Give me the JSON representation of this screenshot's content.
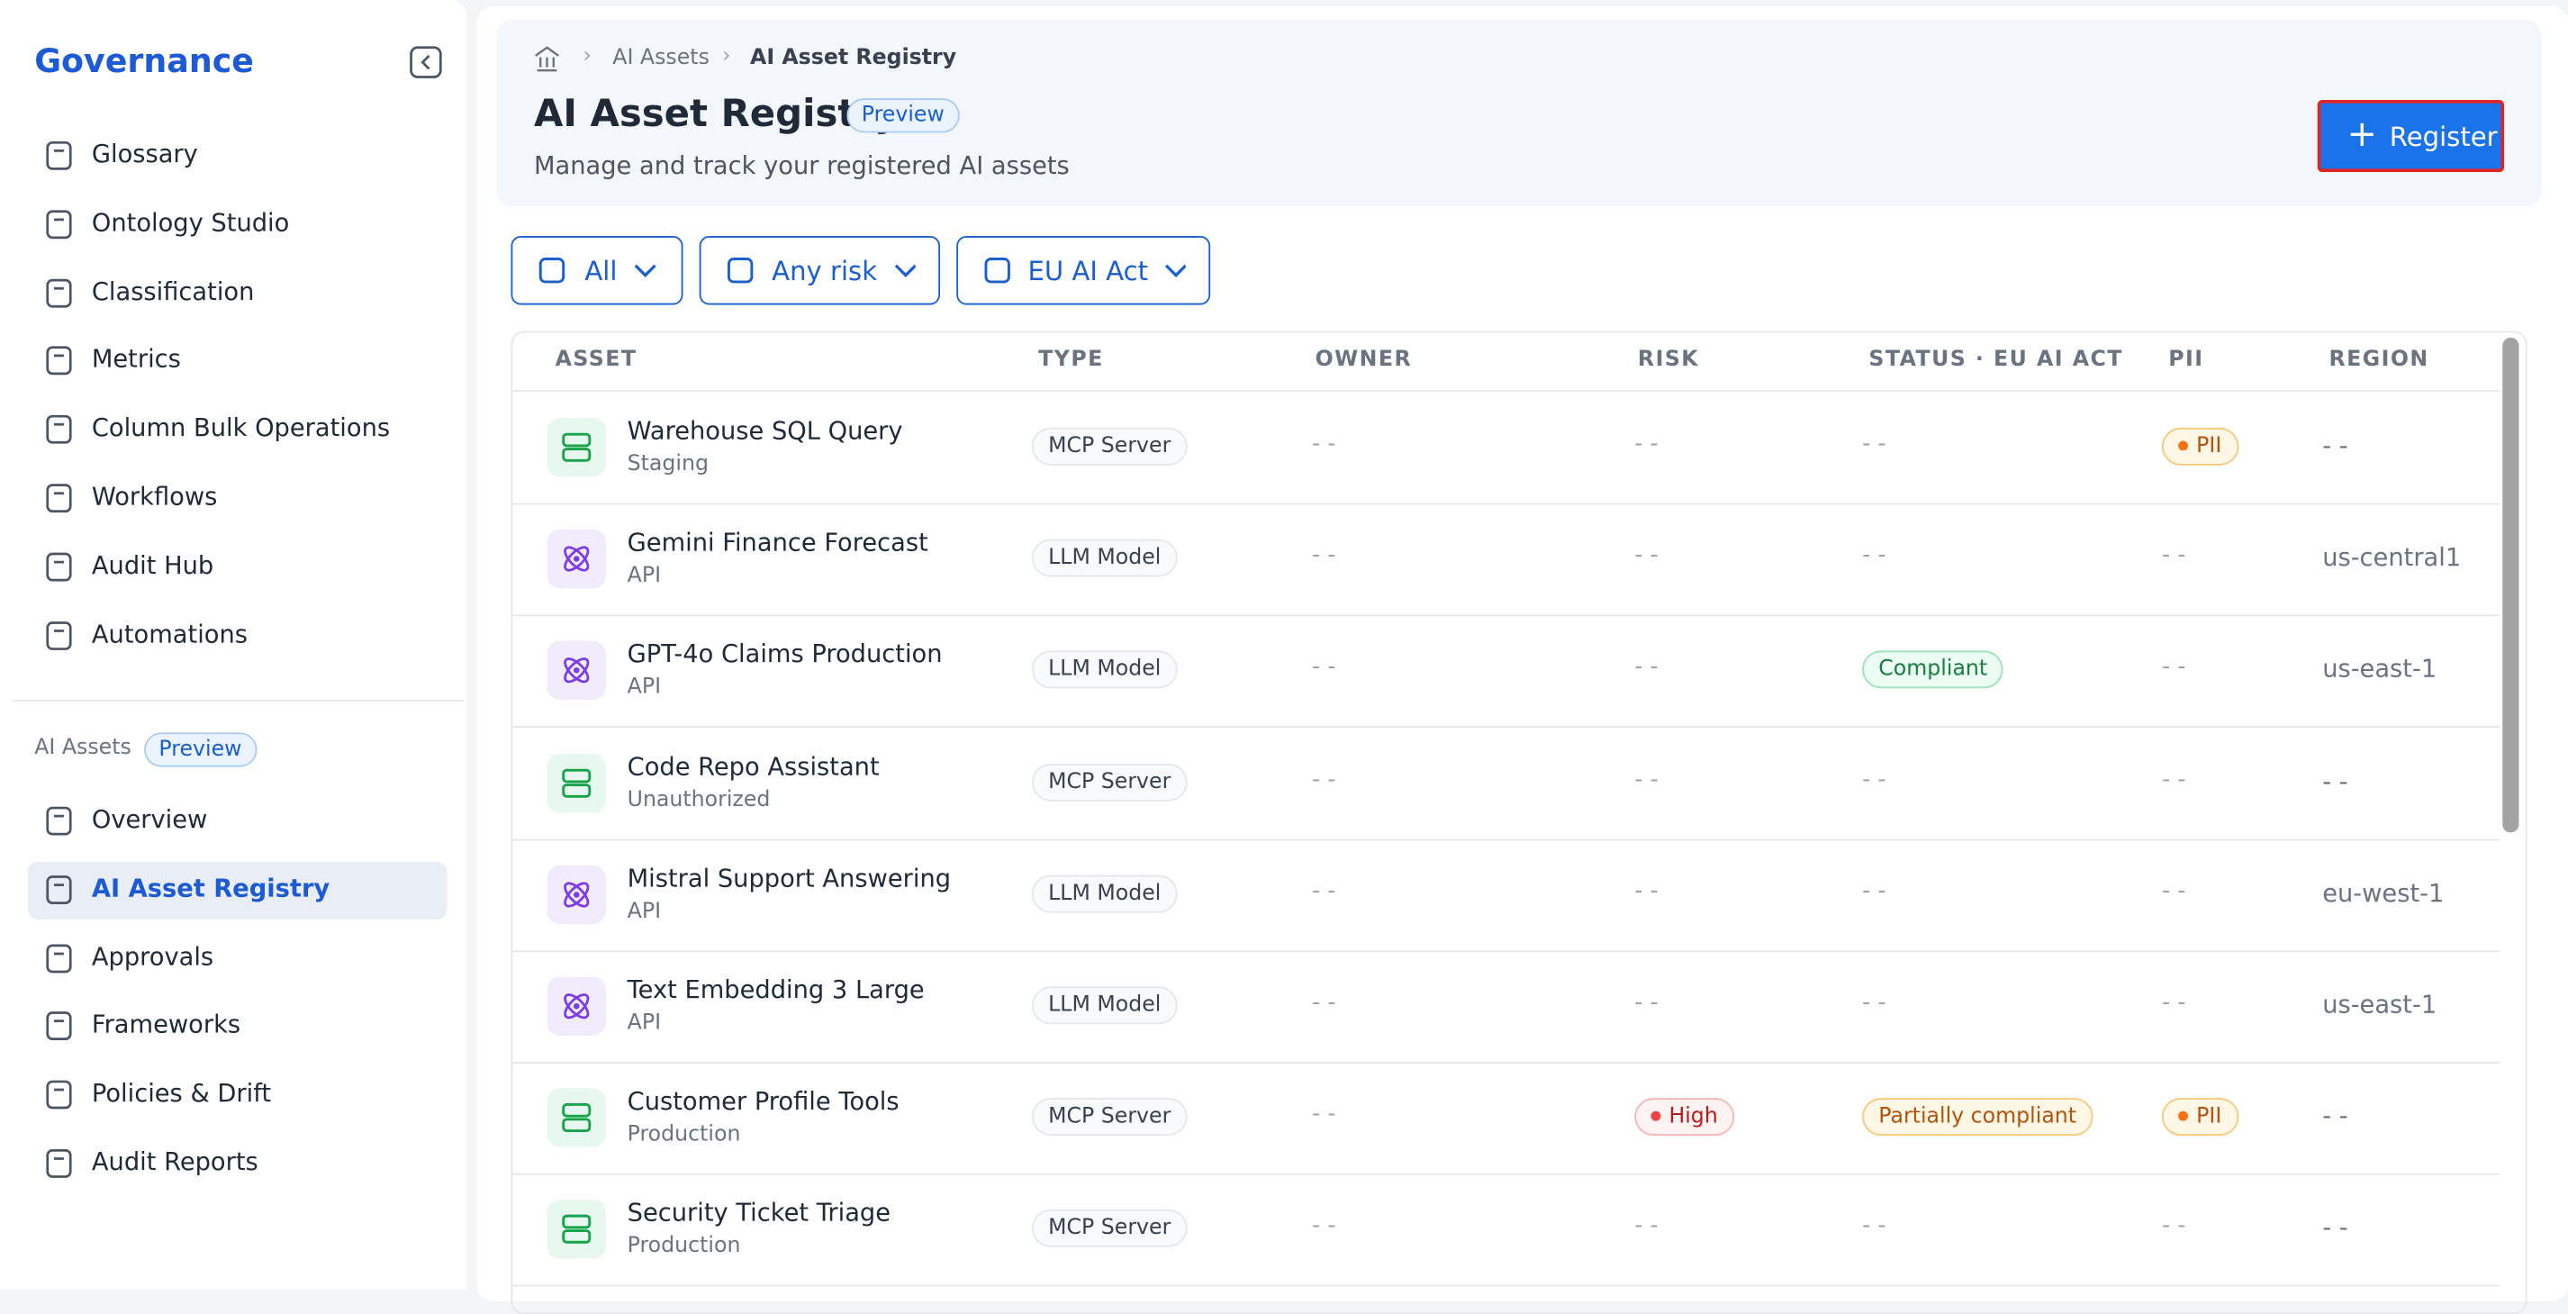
{
  "sidebar": {
    "title": "Governance",
    "nav": [
      "Glossary",
      "Ontology Studio",
      "Classification",
      "Metrics",
      "Column Bulk Operations",
      "Workflows",
      "Audit Hub",
      "Automations"
    ],
    "section": {
      "label": "AI Assets",
      "badge": "Preview",
      "items": [
        "Overview",
        "AI Asset Registry",
        "Approvals",
        "Frameworks",
        "Policies & Drift",
        "Audit Reports"
      ]
    }
  },
  "header": {
    "breadcrumb": [
      "AI Assets",
      "AI Asset Registry"
    ],
    "title": "AI Asset Registry",
    "badge": "Preview",
    "subtitle": "Manage and track your registered AI assets",
    "button": "Register"
  },
  "filters": [
    "All",
    "Any risk",
    "EU AI Act"
  ],
  "table": {
    "columns": [
      "ASSET",
      "TYPE",
      "OWNER",
      "RISK",
      "STATUS · EU AI ACT",
      "PII",
      "REGION"
    ],
    "rows": [
      [
        "Warehouse SQL Query",
        "Staging",
        "MCP Server",
        "- -",
        "- -",
        "- -",
        "PII",
        "- -"
      ],
      [
        "Gemini Finance Forecast",
        "API",
        "LLM Model",
        "- -",
        "- -",
        "- -",
        "- -",
        "us-central1"
      ],
      [
        "GPT-4o Claims Production",
        "API",
        "LLM Model",
        "- -",
        "- -",
        "Compliant",
        "- -",
        "us-east-1"
      ],
      [
        "Code Repo Assistant",
        "Unauthorized",
        "MCP Server",
        "- -",
        "- -",
        "- -",
        "- -",
        "- -"
      ],
      [
        "Mistral Support Answering",
        "API",
        "LLM Model",
        "- -",
        "- -",
        "- -",
        "- -",
        "eu-west-1"
      ],
      [
        "Text Embedding 3 Large",
        "API",
        "LLM Model",
        "- -",
        "- -",
        "- -",
        "- -",
        "us-east-1"
      ],
      [
        "Customer Profile Tools",
        "Production",
        "MCP Server",
        "- -",
        "High",
        "Partially compliant",
        "PII",
        "- -"
      ],
      [
        "Security Ticket Triage",
        "Production",
        "MCP Server",
        "- -",
        "- -",
        "- -",
        "- -",
        "- -"
      ]
    ]
  }
}
